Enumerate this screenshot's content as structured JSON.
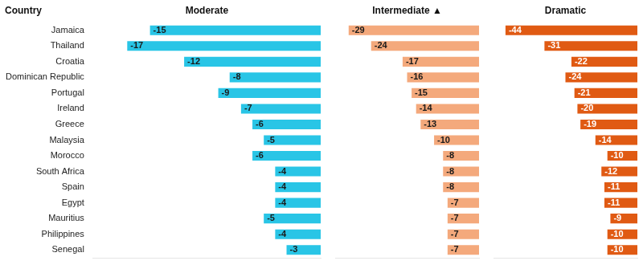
{
  "chart_data": [
    {
      "type": "bar",
      "orientation": "horizontal",
      "title": "Moderate",
      "ylabel": "Country",
      "categories": [
        "Jamaica",
        "Thailand",
        "Croatia",
        "Dominican Republic",
        "Portugal",
        "Ireland",
        "Greece",
        "Malaysia",
        "Morocco",
        "South Africa",
        "Spain",
        "Egypt",
        "Mauritius",
        "Philippines",
        "Senegal"
      ],
      "values": [
        -15,
        -17,
        -12,
        -8,
        -9,
        -7,
        -6,
        -5,
        -6,
        -4,
        -4,
        -4,
        -5,
        -4,
        -3
      ],
      "color": "#29C5E6",
      "xlim": [
        -20,
        0
      ],
      "grid": false,
      "data_labels": true,
      "tick_labels": "y"
    },
    {
      "type": "bar",
      "orientation": "horizontal",
      "title": "Intermediate ▲",
      "categories": [
        "Jamaica",
        "Thailand",
        "Croatia",
        "Dominican Republic",
        "Portugal",
        "Ireland",
        "Greece",
        "Malaysia",
        "Morocco",
        "South Africa",
        "Spain",
        "Egypt",
        "Mauritius",
        "Philippines",
        "Senegal"
      ],
      "values": [
        -29,
        -24,
        -17,
        -16,
        -15,
        -14,
        -13,
        -10,
        -8,
        -8,
        -8,
        -7,
        -7,
        -7,
        -7
      ],
      "color": "#F4A97C",
      "xlim": [
        -32,
        0
      ],
      "grid": false,
      "data_labels": true,
      "tick_labels": false
    },
    {
      "type": "bar",
      "orientation": "horizontal",
      "title": "Dramatic",
      "categories": [
        "Jamaica",
        "Thailand",
        "Croatia",
        "Dominican Republic",
        "Portugal",
        "Ireland",
        "Greece",
        "Malaysia",
        "Morocco",
        "South Africa",
        "Spain",
        "Egypt",
        "Mauritius",
        "Philippines",
        "Senegal"
      ],
      "values": [
        -44,
        -31,
        -22,
        -24,
        -21,
        -20,
        -19,
        -14,
        -10,
        -12,
        -11,
        -11,
        -9,
        -10,
        -10
      ],
      "color": "#E05A13",
      "xlim": [
        -48,
        0
      ],
      "grid": false,
      "data_labels": true,
      "tick_labels": false
    }
  ]
}
